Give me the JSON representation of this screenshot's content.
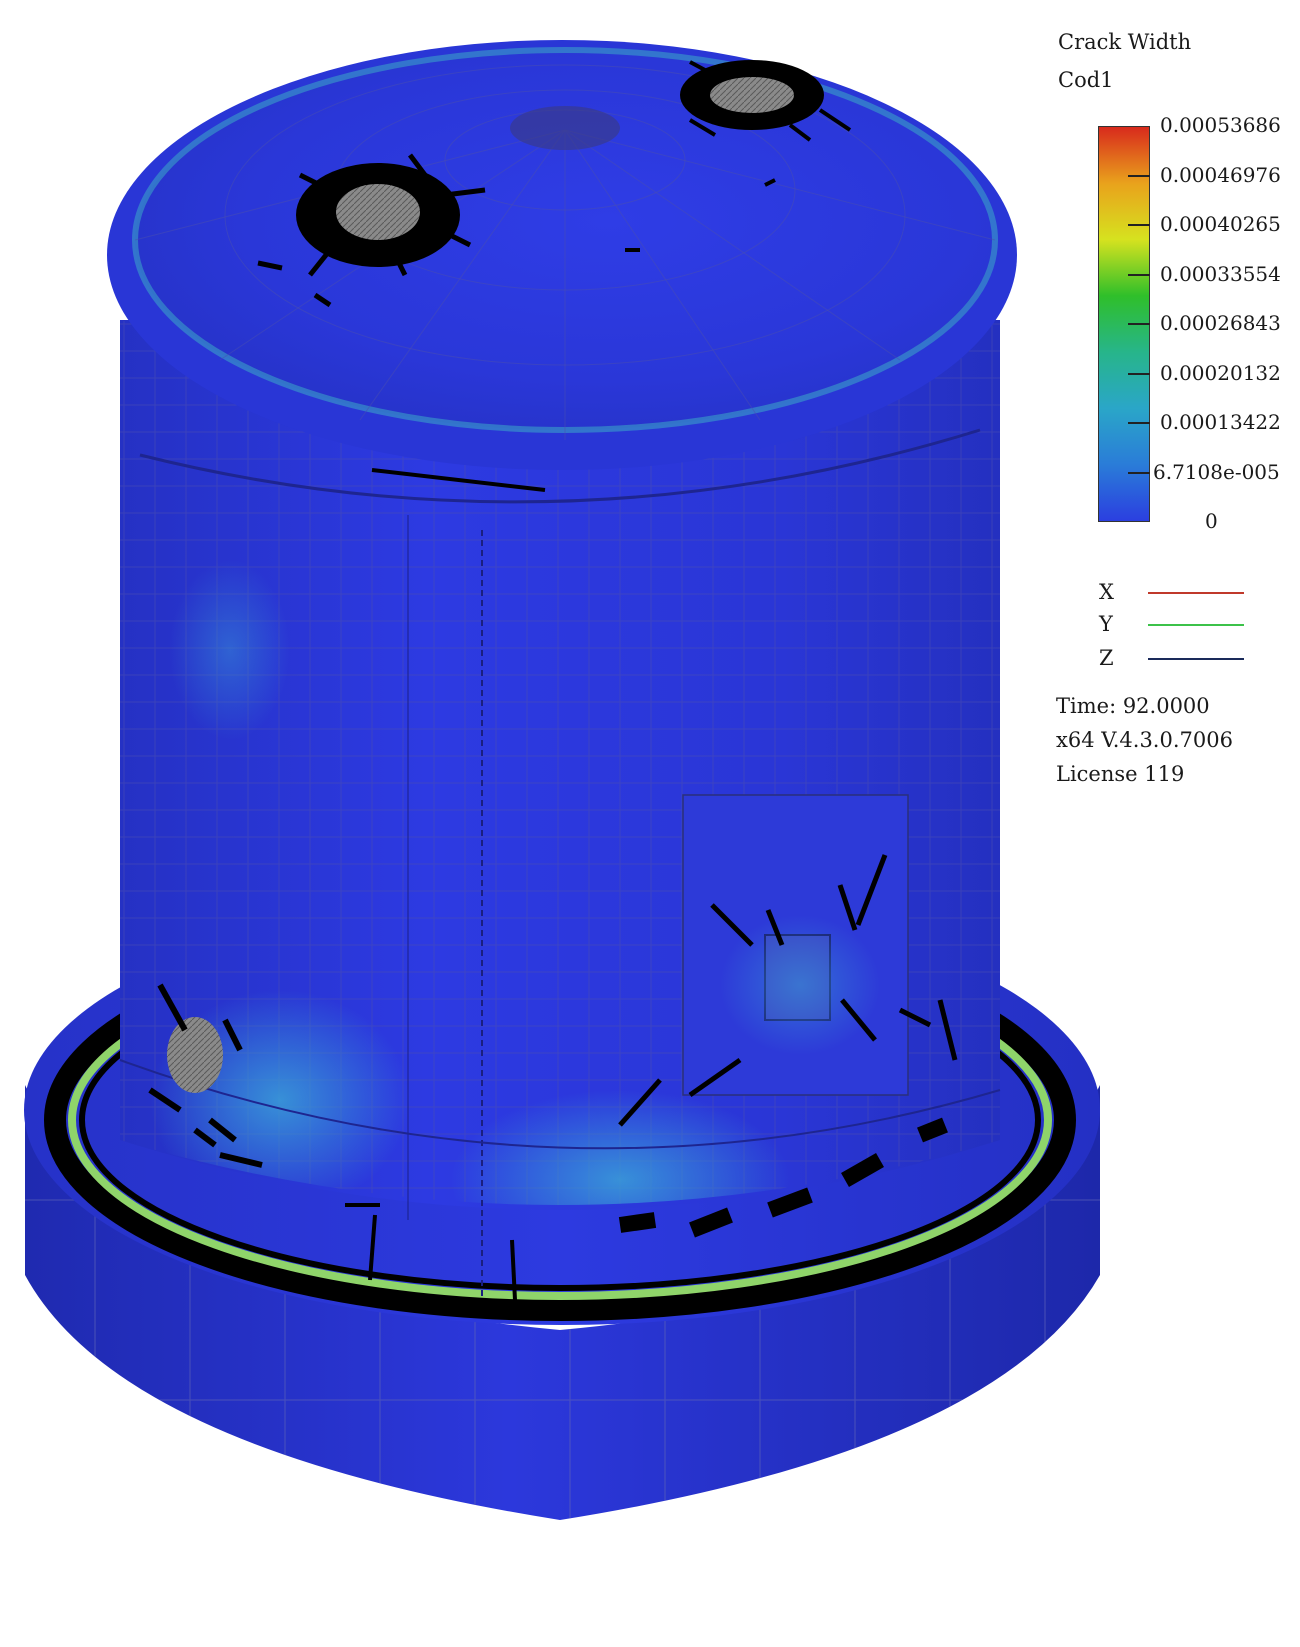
{
  "legend": {
    "title": "Crack Width",
    "subtitle": "Cod1",
    "ticks": [
      "0.00053686",
      "0.00046976",
      "0.00040265",
      "0.00033554",
      "0.00026843",
      "0.00020132",
      "0.00013422",
      "6.7108e-005",
      "0"
    ],
    "colors": [
      "#d82a1c",
      "#e9a21c",
      "#d6e21f",
      "#2fbf2a",
      "#27b58a",
      "#2aa6c8",
      "#2a7cd8",
      "#2b3fe0"
    ]
  },
  "axes": [
    {
      "label": "X",
      "color": "#c0392b"
    },
    {
      "label": "Y",
      "color": "#3cc24a"
    },
    {
      "label": "Z",
      "color": "#1a2a5a"
    }
  ],
  "info": {
    "time": "Time: 92.0000",
    "version": "x64 V.4.3.0.7006",
    "license": "License 119"
  },
  "model": {
    "base_color": "#2b35d8",
    "highlight_color": "#3a8ad8",
    "crack_color": "#000000"
  }
}
